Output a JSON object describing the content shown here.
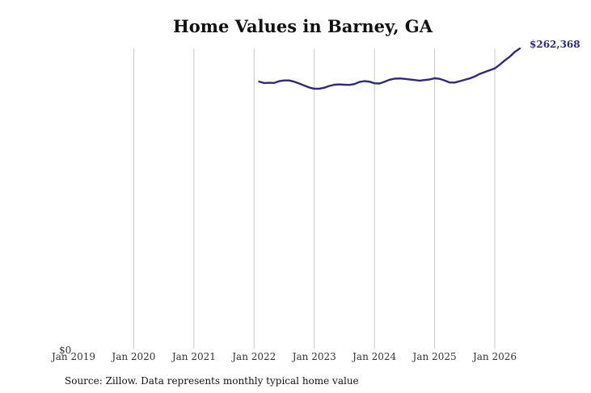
{
  "chart_data": {
    "type": "line",
    "title": "Home Values in Barney, GA",
    "source": "Source: Zillow. Data represents monthly typical home value",
    "xlabel": "",
    "ylabel": "",
    "x_ticks": [
      "Jan 2019",
      "Jan 2020",
      "Jan 2021",
      "Jan 2022",
      "Jan 2023",
      "Jan 2024",
      "Jan 2025",
      "Jan 2026"
    ],
    "y_tick_label": "$0",
    "ylim": [
      0,
      262368
    ],
    "grid": "vertical",
    "line_color": "#2e2a78",
    "end_label": "$262,368",
    "series": [
      {
        "x": [
          "2022-02",
          "2022-03",
          "2022-04",
          "2022-05",
          "2022-06",
          "2022-07",
          "2022-08",
          "2022-09",
          "2022-10",
          "2022-11",
          "2022-12",
          "2023-01",
          "2023-02",
          "2023-03",
          "2023-04",
          "2023-05",
          "2023-06",
          "2023-07",
          "2023-08",
          "2023-09",
          "2023-10",
          "2023-11",
          "2023-12",
          "2024-01",
          "2024-02",
          "2024-03",
          "2024-04",
          "2024-05",
          "2024-06",
          "2024-07",
          "2024-08",
          "2024-09",
          "2024-10",
          "2024-11",
          "2024-12",
          "2025-01",
          "2025-02",
          "2025-03",
          "2025-04",
          "2025-05",
          "2025-06",
          "2025-07",
          "2025-08",
          "2025-09",
          "2025-10",
          "2025-11",
          "2025-12",
          "2026-01",
          "2026-02",
          "2026-03",
          "2026-04",
          "2026-05",
          "2026-06"
        ],
        "values": [
          233400,
          232100,
          232300,
          232200,
          233700,
          234400,
          234400,
          233300,
          231700,
          229900,
          228200,
          227200,
          227200,
          228000,
          229600,
          230600,
          230900,
          230600,
          230500,
          231200,
          233000,
          233800,
          233300,
          231900,
          231700,
          233200,
          235000,
          235900,
          236100,
          235800,
          235300,
          234700,
          234200,
          234700,
          235300,
          236300,
          235800,
          234300,
          232600,
          232500,
          233700,
          234900,
          236100,
          237800,
          240100,
          241800,
          243300,
          244900,
          248200,
          251900,
          255200,
          259300,
          262368
        ]
      }
    ]
  }
}
